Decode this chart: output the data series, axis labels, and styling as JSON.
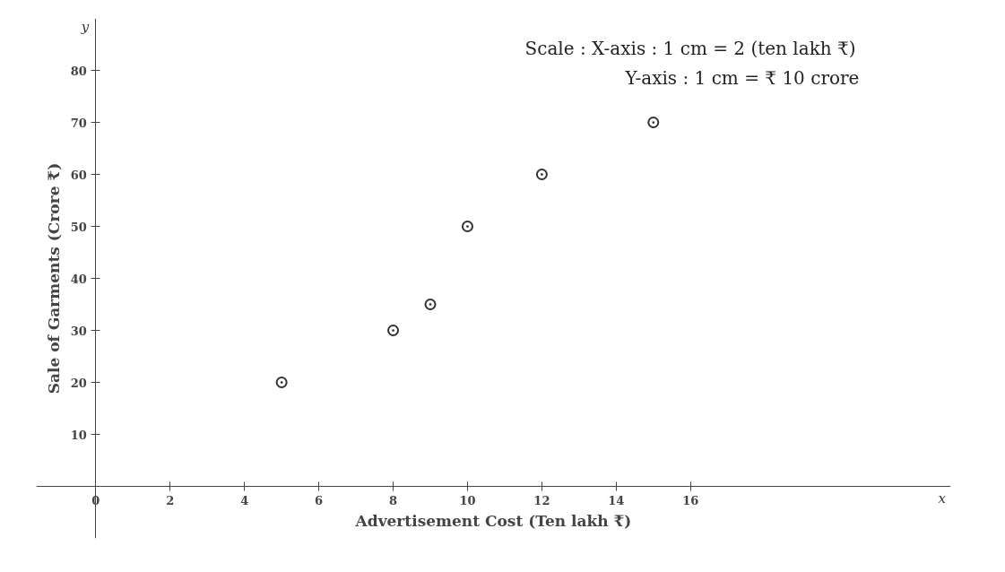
{
  "chart_data": {
    "type": "scatter",
    "xlabel": "Advertisement Cost (Ten lakh ₹)",
    "ylabel": "Sale of Garments (Crore ₹)",
    "x": [
      5,
      8,
      9,
      10,
      12,
      15
    ],
    "series": [
      {
        "color": "#333333",
        "values": [
          20,
          30,
          35,
          50,
          60,
          70
        ]
      }
    ],
    "xlim": [
      -1.6,
      23
    ],
    "ylim": [
      -10,
      90
    ],
    "xticks": [
      0,
      2,
      4,
      6,
      8,
      10,
      12,
      14,
      16
    ],
    "yticks": [
      10,
      20,
      30,
      40,
      50,
      60,
      70,
      80
    ],
    "annotations": [
      "x",
      "y",
      "Scale :   X-axis  :  1  cm  =  2  (ten  lakh  ₹)",
      "Y-axis  :  1  cm  =  ₹  10  crore"
    ],
    "marker": "circle",
    "grid": false
  }
}
